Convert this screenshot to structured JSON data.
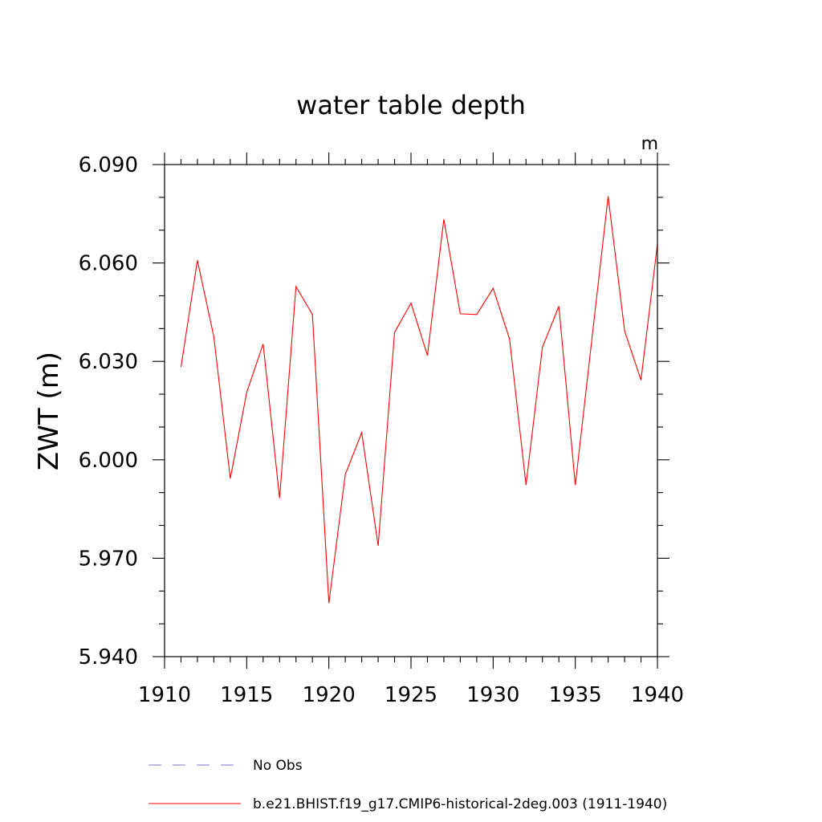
{
  "chart_data": {
    "type": "line",
    "title": "water table depth",
    "units_label": "m",
    "ylabel": "ZWT  (m)",
    "xlabel": "",
    "xlim": [
      1910,
      1940
    ],
    "ylim": [
      5.94,
      6.09
    ],
    "xticks": [
      1910,
      1915,
      1920,
      1925,
      1930,
      1935,
      1940
    ],
    "xtick_labels": [
      "1910",
      "1915",
      "1920",
      "1925",
      "1930",
      "1935",
      "1940"
    ],
    "yticks": [
      5.94,
      5.97,
      6.0,
      6.03,
      6.06,
      6.09
    ],
    "ytick_labels": [
      "5.940",
      "5.970",
      "6.000",
      "6.030",
      "6.060",
      "6.090"
    ],
    "grid": false,
    "legend_position": "bottom",
    "series": [
      {
        "name": "b.e21.BHIST.f19_g17.CMIP6-historical-2deg.003 (1911-1940)",
        "color": "#ff0000",
        "style": "solid",
        "x": [
          1911,
          1912,
          1913,
          1914,
          1915,
          1916,
          1917,
          1918,
          1919,
          1920,
          1921,
          1922,
          1923,
          1924,
          1925,
          1926,
          1927,
          1928,
          1929,
          1930,
          1931,
          1932,
          1933,
          1934,
          1935,
          1936,
          1937,
          1938,
          1939,
          1940
        ],
        "y": [
          6.0283,
          6.0608,
          6.0375,
          5.9943,
          6.0205,
          6.0353,
          5.9883,
          6.0528,
          6.0443,
          5.9563,
          5.9955,
          6.0083,
          5.9738,
          6.0388,
          6.0478,
          6.0318,
          6.0733,
          6.0445,
          6.0443,
          6.0523,
          6.0368,
          5.9923,
          6.0343,
          6.0468,
          5.9923,
          6.0363,
          6.0803,
          6.0393,
          6.0243,
          6.0658
        ]
      }
    ],
    "legend": [
      {
        "label": "No Obs",
        "color": "#7777cc",
        "style": "dashed"
      },
      {
        "label": "b.e21.BHIST.f19_g17.CMIP6-historical-2deg.003 (1911-1940)",
        "color": "#ff0000",
        "style": "solid"
      }
    ]
  }
}
